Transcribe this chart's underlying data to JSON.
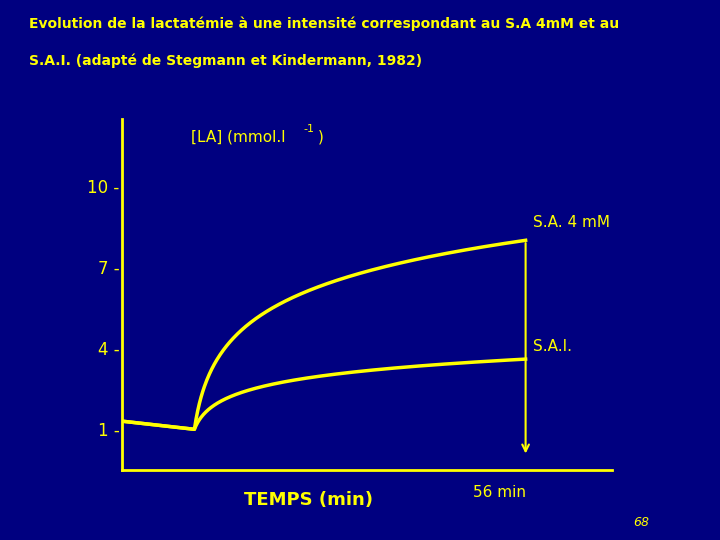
{
  "title_line1": "Evolution de la lactatémie à une intensité correspondant au S.A 4mM et au",
  "title_line2": "S.A.I. (adapté de Stegmann et Kindermann, 1982)",
  "xlabel": "TEMPS (min)",
  "ylabel_line1": "[LA] (mmol.l",
  "ylabel_sup": "-1",
  "ylabel_end": ")",
  "background_color": "#000080",
  "axis_color": "#FFFF00",
  "text_color": "#FFFF00",
  "curve_color": "#FFFF00",
  "yticks": [
    1,
    4,
    7,
    10
  ],
  "xmax": 68,
  "ymax": 12.5,
  "ymin": -0.5,
  "xmin": 0,
  "t_start": 10,
  "t_end": 56,
  "sa4mm_end": 8.0,
  "sai_end": 3.6,
  "sa4mm_label": "S.A. 4 mM",
  "sai_label": "S.A.I.",
  "time_label": "56 min",
  "page_number": "68"
}
